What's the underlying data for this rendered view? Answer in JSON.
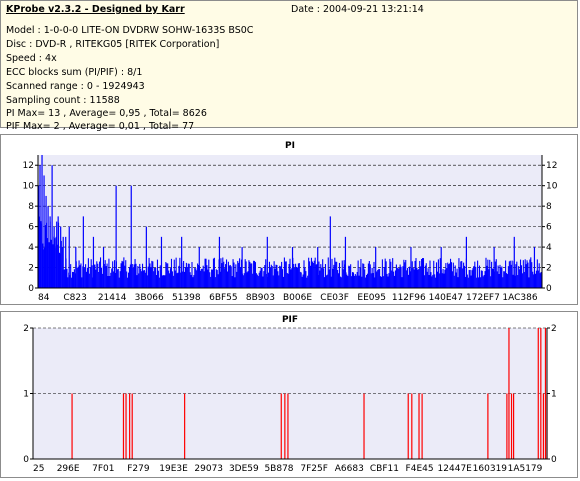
{
  "header": {
    "title": "KProbe v2.3.2 - Designed by Karr",
    "date": "Date : 2004-09-21 13:21:14",
    "lines": [
      "Model : 1-0-0-0 LITE-ON DVDRW SOHW-1633S BS0C",
      "Disc : DVD-R , RITEKG05 [RITEK Corporation]",
      "Speed : 4x",
      "ECC blocks sum (PI/PIF) : 8/1",
      "Scanned range : 0 - 1924943",
      "Sampling count : 11588",
      "PI Max= 13 , Average= 0,95 , Total= 8626",
      "PIF Max= 2 , Average= 0,01 , Total= 77"
    ]
  },
  "colors": {
    "pi_series": "#0000ff",
    "pif_series": "#ff0000",
    "plot_bg": "#ebebf8",
    "axis": "#000000",
    "grid": "#000000"
  },
  "chart_data": [
    {
      "type": "bar",
      "title": "PI",
      "ylim": [
        0,
        13
      ],
      "yticks": [
        0,
        2,
        4,
        6,
        8,
        10,
        12
      ],
      "xticks": [
        "84",
        "C823",
        "21414",
        "3B066",
        "51398",
        "6BF55",
        "8B903",
        "B006E",
        "CE03F",
        "EE095",
        "112F96",
        "140E47",
        "172EF7",
        "1AC386"
      ],
      "grid": "dashed horizontal",
      "sampling_count": 11588,
      "max": 13,
      "average": 0.95,
      "total": 8626,
      "spikes": [
        {
          "x": 0.001,
          "v": 10
        },
        {
          "x": 0.004,
          "v": 12
        },
        {
          "x": 0.008,
          "v": 13
        },
        {
          "x": 0.012,
          "v": 11
        },
        {
          "x": 0.016,
          "v": 9
        },
        {
          "x": 0.02,
          "v": 8
        },
        {
          "x": 0.024,
          "v": 7
        },
        {
          "x": 0.028,
          "v": 12
        },
        {
          "x": 0.032,
          "v": 6
        },
        {
          "x": 0.036,
          "v": 5
        },
        {
          "x": 0.04,
          "v": 7
        },
        {
          "x": 0.045,
          "v": 6
        },
        {
          "x": 0.05,
          "v": 5
        },
        {
          "x": 0.055,
          "v": 5
        },
        {
          "x": 0.062,
          "v": 6
        },
        {
          "x": 0.075,
          "v": 4
        },
        {
          "x": 0.09,
          "v": 7
        },
        {
          "x": 0.11,
          "v": 5
        },
        {
          "x": 0.13,
          "v": 4
        },
        {
          "x": 0.155,
          "v": 10
        },
        {
          "x": 0.185,
          "v": 10
        },
        {
          "x": 0.215,
          "v": 6
        },
        {
          "x": 0.245,
          "v": 5
        },
        {
          "x": 0.285,
          "v": 5
        },
        {
          "x": 0.32,
          "v": 4
        },
        {
          "x": 0.36,
          "v": 5
        },
        {
          "x": 0.405,
          "v": 4
        },
        {
          "x": 0.455,
          "v": 5
        },
        {
          "x": 0.505,
          "v": 4
        },
        {
          "x": 0.555,
          "v": 4
        },
        {
          "x": 0.58,
          "v": 7
        },
        {
          "x": 0.61,
          "v": 5
        },
        {
          "x": 0.67,
          "v": 4
        },
        {
          "x": 0.74,
          "v": 4
        },
        {
          "x": 0.8,
          "v": 4
        },
        {
          "x": 0.85,
          "v": 5
        },
        {
          "x": 0.905,
          "v": 4
        },
        {
          "x": 0.945,
          "v": 5
        },
        {
          "x": 0.985,
          "v": 4
        }
      ]
    },
    {
      "type": "bar",
      "title": "PIF",
      "ylim": [
        0,
        2
      ],
      "yticks": [
        0,
        1,
        2
      ],
      "xticks": [
        "25",
        "296E",
        "7F01",
        "F279",
        "19E3E",
        "29073",
        "3DE59",
        "5B878",
        "7F25F",
        "A6683",
        "CBF11",
        "F4E45",
        "12447E",
        "160319",
        "1A5179"
      ],
      "grid": "dashed horizontal",
      "sampling_count": 11588,
      "max": 2,
      "average": 0.01,
      "total": 77,
      "bars": [
        {
          "x": 0.076,
          "v": 1
        },
        {
          "x": 0.176,
          "v": 1
        },
        {
          "x": 0.181,
          "v": 1
        },
        {
          "x": 0.188,
          "v": 1
        },
        {
          "x": 0.193,
          "v": 1
        },
        {
          "x": 0.295,
          "v": 1
        },
        {
          "x": 0.483,
          "v": 1
        },
        {
          "x": 0.49,
          "v": 1
        },
        {
          "x": 0.496,
          "v": 1
        },
        {
          "x": 0.644,
          "v": 1
        },
        {
          "x": 0.73,
          "v": 1
        },
        {
          "x": 0.737,
          "v": 1
        },
        {
          "x": 0.751,
          "v": 1
        },
        {
          "x": 0.757,
          "v": 1
        },
        {
          "x": 0.885,
          "v": 1
        },
        {
          "x": 0.922,
          "v": 1
        },
        {
          "x": 0.926,
          "v": 2
        },
        {
          "x": 0.931,
          "v": 1
        },
        {
          "x": 0.935,
          "v": 1
        },
        {
          "x": 0.983,
          "v": 2
        },
        {
          "x": 0.988,
          "v": 2
        },
        {
          "x": 0.993,
          "v": 1
        },
        {
          "x": 0.997,
          "v": 2
        },
        {
          "x": 1.0,
          "v": 1
        }
      ]
    }
  ]
}
